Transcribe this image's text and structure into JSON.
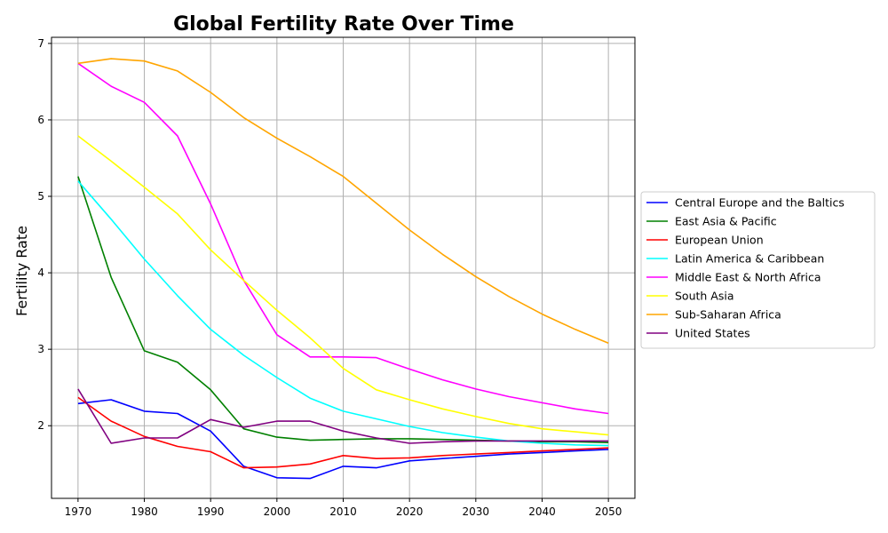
{
  "chart_data": {
    "type": "line",
    "title": "Global Fertility Rate Over Time",
    "xlabel": "",
    "ylabel": "Fertility Rate",
    "xlim": [
      1966,
      2054
    ],
    "ylim": [
      1.05,
      7.08
    ],
    "xticks": [
      1970,
      1980,
      1990,
      2000,
      2010,
      2020,
      2030,
      2040,
      2050
    ],
    "yticks": [
      2,
      3,
      4,
      5,
      6,
      7
    ],
    "grid": true,
    "legend_position": "center-right-outside",
    "x": [
      1970,
      1975,
      1980,
      1985,
      1990,
      1995,
      2000,
      2005,
      2010,
      2015,
      2020,
      2025,
      2030,
      2035,
      2040,
      2045,
      2050
    ],
    "series": [
      {
        "name": "Central Europe and the Baltics",
        "color": "#0000ff",
        "values": [
          2.29,
          2.34,
          2.19,
          2.16,
          1.93,
          1.47,
          1.32,
          1.31,
          1.47,
          1.45,
          1.54,
          1.57,
          1.6,
          1.63,
          1.65,
          1.67,
          1.69
        ]
      },
      {
        "name": "East Asia & Pacific",
        "color": "#008000",
        "values": [
          5.26,
          3.94,
          2.98,
          2.83,
          2.47,
          1.96,
          1.85,
          1.81,
          1.82,
          1.83,
          1.83,
          1.82,
          1.81,
          1.8,
          1.79,
          1.79,
          1.78
        ]
      },
      {
        "name": "European Union",
        "color": "#ff0000",
        "values": [
          2.37,
          2.06,
          1.86,
          1.73,
          1.66,
          1.45,
          1.46,
          1.5,
          1.61,
          1.57,
          1.58,
          1.61,
          1.63,
          1.65,
          1.67,
          1.69,
          1.71
        ]
      },
      {
        "name": "Latin America & Caribbean",
        "color": "#00ffff",
        "values": [
          5.2,
          4.7,
          4.18,
          3.7,
          3.26,
          2.92,
          2.63,
          2.36,
          2.19,
          2.09,
          1.99,
          1.91,
          1.85,
          1.8,
          1.77,
          1.75,
          1.74
        ]
      },
      {
        "name": "Middle East & North Africa",
        "color": "#ff00ff",
        "values": [
          6.74,
          6.44,
          6.23,
          5.79,
          4.9,
          3.9,
          3.19,
          2.9,
          2.9,
          2.89,
          2.74,
          2.6,
          2.48,
          2.38,
          2.3,
          2.22,
          2.16
        ]
      },
      {
        "name": "South Asia",
        "color": "#ffff00",
        "values": [
          5.79,
          5.46,
          5.12,
          4.77,
          4.3,
          3.9,
          3.51,
          3.15,
          2.75,
          2.47,
          2.34,
          2.22,
          2.12,
          2.03,
          1.96,
          1.92,
          1.88
        ]
      },
      {
        "name": "Sub-Saharan Africa",
        "color": "#ffa500",
        "values": [
          6.74,
          6.8,
          6.77,
          6.64,
          6.36,
          6.03,
          5.76,
          5.52,
          5.26,
          4.91,
          4.56,
          4.24,
          3.95,
          3.69,
          3.46,
          3.26,
          3.08
        ]
      },
      {
        "name": "United States",
        "color": "#800080",
        "values": [
          2.48,
          1.77,
          1.84,
          1.84,
          2.08,
          1.98,
          2.06,
          2.06,
          1.93,
          1.84,
          1.77,
          1.79,
          1.8,
          1.8,
          1.8,
          1.8,
          1.8
        ]
      }
    ]
  }
}
